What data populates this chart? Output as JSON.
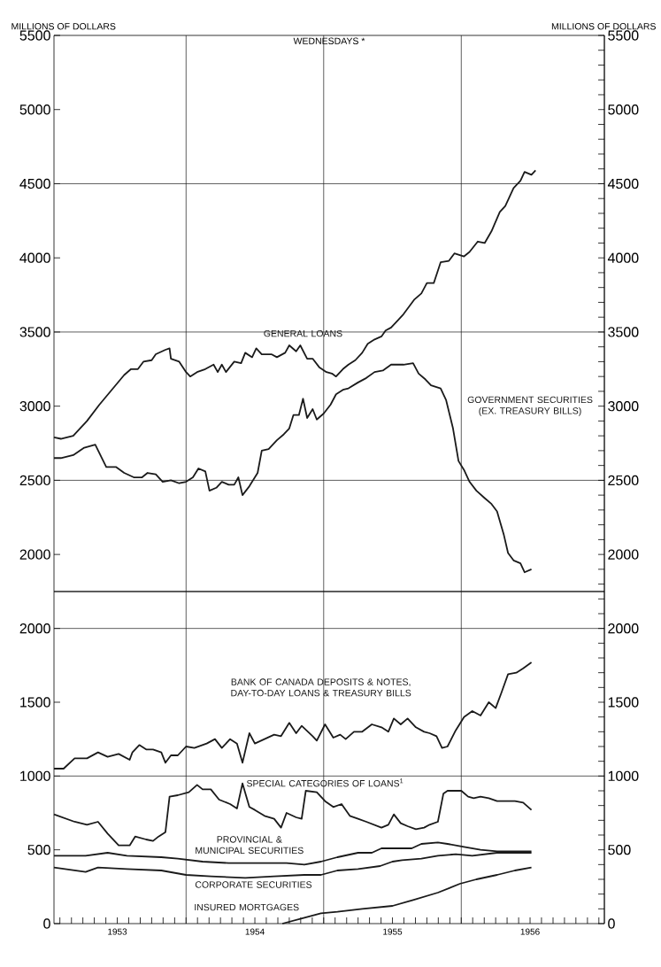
{
  "chart_data": [
    {
      "type": "line",
      "title": "WEDNESDAYS *",
      "ylabel": "MILLIONS OF DOLLARS",
      "y2label": "MILLIONS OF DOLLARS",
      "xlim": [
        1953.04,
        1957.04
      ],
      "ylim": [
        1750,
        5500
      ],
      "yticks": [
        2000,
        2500,
        3000,
        3500,
        4000,
        4500,
        5000,
        5500
      ],
      "y2lim": [
        1750,
        5500
      ],
      "y2ticks": [
        {
          "value": 1800,
          "label": null
        },
        {
          "value": 1900,
          "label": null
        },
        2000,
        {
          "value": 2100,
          "label": null
        },
        {
          "value": 2200,
          "label": null
        },
        {
          "value": 2300,
          "label": null
        },
        {
          "value": 2400,
          "label": null
        },
        2500,
        {
          "value": 2600,
          "label": null
        },
        {
          "value": 2700,
          "label": null
        },
        {
          "value": 2800,
          "label": null
        },
        {
          "value": 2900,
          "label": null
        },
        3000,
        {
          "value": 3100,
          "label": null
        },
        {
          "value": 3200,
          "label": null
        },
        {
          "value": 3300,
          "label": null
        },
        {
          "value": 3400,
          "label": null
        },
        3500,
        {
          "value": 3600,
          "label": null
        },
        {
          "value": 3700,
          "label": null
        },
        {
          "value": 3800,
          "label": null
        },
        {
          "value": 3900,
          "label": null
        },
        4000,
        {
          "value": 4100,
          "label": null
        },
        {
          "value": 4200,
          "label": null
        },
        {
          "value": 4300,
          "label": null
        },
        {
          "value": 4400,
          "label": null
        },
        4500,
        {
          "value": 4600,
          "label": null
        },
        {
          "value": 4700,
          "label": null
        },
        {
          "value": 4800,
          "label": null
        },
        {
          "value": 4900,
          "label": null
        },
        5000,
        {
          "value": 5100,
          "label": null
        },
        {
          "value": 5200,
          "label": null
        },
        {
          "value": 5300,
          "label": null
        },
        {
          "value": 5400,
          "label": null
        },
        5500
      ],
      "tick_labels": "y",
      "marker": "none",
      "ref_lines": [
        {
          "axis": "x",
          "value": 1954
        },
        {
          "axis": "x",
          "value": 1955
        },
        {
          "axis": "x",
          "value": 1956
        },
        {
          "axis": "y",
          "value": 2500
        },
        {
          "axis": "y",
          "value": 3500
        },
        {
          "axis": "y",
          "value": 4500
        }
      ],
      "series": [
        {
          "name": "GENERAL LOANS",
          "color": "#1a1a1a",
          "x": [
            1953.04,
            1953.09,
            1953.18,
            1953.28,
            1953.37,
            1953.46,
            1953.55,
            1953.6,
            1953.65,
            1953.69,
            1953.75,
            1953.78,
            1953.85,
            1953.88,
            1953.89,
            1953.95,
            1954.0,
            1954.03,
            1954.08,
            1954.14,
            1954.2,
            1954.23,
            1954.26,
            1954.29,
            1954.35,
            1954.4,
            1954.43,
            1954.48,
            1954.51,
            1954.55,
            1954.62,
            1954.66,
            1954.72,
            1954.75,
            1954.8,
            1954.83,
            1954.88,
            1954.92,
            1954.97,
            1955.02,
            1955.06,
            1955.09,
            1955.14,
            1955.18,
            1955.23,
            1955.28,
            1955.32,
            1955.37,
            1955.42,
            1955.45,
            1955.49,
            1955.54,
            1955.58,
            1955.66,
            1955.71,
            1955.75,
            1955.8,
            1955.85,
            1955.91,
            1955.95,
            1956.02,
            1956.06,
            1956.12,
            1956.17,
            1956.22,
            1956.28,
            1956.32,
            1956.38,
            1956.43,
            1956.46,
            1956.51,
            1956.54
          ],
          "values": [
            2790,
            2780,
            2800,
            2900,
            3010,
            3110,
            3210,
            3250,
            3250,
            3300,
            3310,
            3350,
            3380,
            3390,
            3320,
            3300,
            3230,
            3200,
            3230,
            3250,
            3280,
            3230,
            3280,
            3230,
            3300,
            3290,
            3360,
            3330,
            3390,
            3350,
            3350,
            3330,
            3360,
            3410,
            3370,
            3410,
            3320,
            3320,
            3260,
            3230,
            3220,
            3200,
            3250,
            3280,
            3310,
            3360,
            3420,
            3450,
            3470,
            3510,
            3530,
            3580,
            3620,
            3720,
            3760,
            3830,
            3830,
            3970,
            3980,
            4030,
            4010,
            4040,
            4110,
            4100,
            4180,
            4310,
            4350,
            4470,
            4520,
            4580,
            4560,
            4590
          ]
        },
        {
          "name": "GOVERNMENT SECURITIES (EX. TREASURY BILLS)",
          "color": "#1a1a1a",
          "x": [
            1953.04,
            1953.09,
            1953.18,
            1953.26,
            1953.34,
            1953.42,
            1953.49,
            1953.55,
            1953.62,
            1953.68,
            1953.72,
            1953.78,
            1953.83,
            1953.89,
            1953.95,
            1954.0,
            1954.05,
            1954.09,
            1954.14,
            1954.17,
            1954.22,
            1954.26,
            1954.31,
            1954.35,
            1954.38,
            1954.41,
            1954.46,
            1954.52,
            1954.55,
            1954.6,
            1954.66,
            1954.71,
            1954.75,
            1954.78,
            1954.82,
            1954.85,
            1954.88,
            1954.92,
            1954.95,
            1955.0,
            1955.05,
            1955.09,
            1955.14,
            1955.18,
            1955.25,
            1955.31,
            1955.37,
            1955.43,
            1955.49,
            1955.54,
            1955.58,
            1955.65,
            1955.69,
            1955.74,
            1955.78,
            1955.85,
            1955.89,
            1955.94,
            1955.98,
            1956.02,
            1956.06,
            1956.11,
            1956.17,
            1956.22,
            1956.26,
            1956.31,
            1956.34,
            1956.38,
            1956.43,
            1956.46,
            1956.51
          ],
          "values": [
            2650,
            2650,
            2670,
            2720,
            2740,
            2590,
            2590,
            2550,
            2520,
            2520,
            2550,
            2540,
            2490,
            2500,
            2480,
            2490,
            2520,
            2580,
            2560,
            2430,
            2450,
            2490,
            2470,
            2470,
            2520,
            2400,
            2460,
            2550,
            2700,
            2710,
            2770,
            2810,
            2850,
            2940,
            2940,
            3050,
            2920,
            2980,
            2910,
            2950,
            3010,
            3080,
            3110,
            3120,
            3160,
            3190,
            3230,
            3240,
            3280,
            3280,
            3280,
            3290,
            3220,
            3180,
            3140,
            3120,
            3040,
            2850,
            2630,
            2570,
            2490,
            2430,
            2380,
            2340,
            2290,
            2130,
            2010,
            1960,
            1940,
            1880,
            1900
          ]
        }
      ]
    },
    {
      "type": "line",
      "xlim": [
        1953.04,
        1957.04
      ],
      "ylim": [
        0,
        2250
      ],
      "yticks": [
        0,
        500,
        1000,
        1500,
        2000
      ],
      "xticks": [
        {
          "value": 1953.083,
          "label": null
        },
        {
          "value": 1953.167,
          "label": null
        },
        {
          "value": 1953.25,
          "label": null
        },
        {
          "value": 1953.333,
          "label": null
        },
        {
          "value": 1953.417,
          "label": null
        },
        {
          "value": 1953.5,
          "label": "1953"
        },
        {
          "value": 1953.583,
          "label": null
        },
        {
          "value": 1953.667,
          "label": null
        },
        {
          "value": 1953.75,
          "label": null
        },
        {
          "value": 1953.833,
          "label": null
        },
        {
          "value": 1953.917,
          "label": null
        },
        {
          "value": 1954,
          "label": null
        },
        {
          "value": 1954.083,
          "label": null
        },
        {
          "value": 1954.167,
          "label": null
        },
        {
          "value": 1954.25,
          "label": null
        },
        {
          "value": 1954.333,
          "label": null
        },
        {
          "value": 1954.417,
          "label": null
        },
        {
          "value": 1954.5,
          "label": "1954"
        },
        {
          "value": 1954.583,
          "label": null
        },
        {
          "value": 1954.667,
          "label": null
        },
        {
          "value": 1954.75,
          "label": null
        },
        {
          "value": 1954.833,
          "label": null
        },
        {
          "value": 1954.917,
          "label": null
        },
        {
          "value": 1955,
          "label": null
        },
        {
          "value": 1955.083,
          "label": null
        },
        {
          "value": 1955.167,
          "label": null
        },
        {
          "value": 1955.25,
          "label": null
        },
        {
          "value": 1955.333,
          "label": null
        },
        {
          "value": 1955.417,
          "label": null
        },
        {
          "value": 1955.5,
          "label": "1955"
        },
        {
          "value": 1955.583,
          "label": null
        },
        {
          "value": 1955.667,
          "label": null
        },
        {
          "value": 1955.75,
          "label": null
        },
        {
          "value": 1955.833,
          "label": null
        },
        {
          "value": 1955.917,
          "label": null
        },
        {
          "value": 1956,
          "label": null
        },
        {
          "value": 1956.083,
          "label": null
        },
        {
          "value": 1956.167,
          "label": null
        },
        {
          "value": 1956.25,
          "label": null
        },
        {
          "value": 1956.333,
          "label": null
        },
        {
          "value": 1956.417,
          "label": null
        },
        {
          "value": 1956.5,
          "label": "1956"
        },
        {
          "value": 1956.583,
          "label": null
        },
        {
          "value": 1956.667,
          "label": null
        },
        {
          "value": 1956.75,
          "label": null
        },
        {
          "value": 1956.833,
          "label": null
        },
        {
          "value": 1956.917,
          "label": null
        },
        {
          "value": 1957,
          "label": null
        }
      ],
      "y2lim": [
        0,
        2250
      ],
      "y2ticks": [
        0,
        {
          "value": 100,
          "label": null
        },
        {
          "value": 200,
          "label": null
        },
        {
          "value": 300,
          "label": null
        },
        {
          "value": 400,
          "label": null
        },
        500,
        {
          "value": 600,
          "label": null
        },
        {
          "value": 700,
          "label": null
        },
        {
          "value": 800,
          "label": null
        },
        {
          "value": 900,
          "label": null
        },
        1000,
        {
          "value": 1100,
          "label": null
        },
        {
          "value": 1200,
          "label": null
        },
        {
          "value": 1300,
          "label": null
        },
        {
          "value": 1400,
          "label": null
        },
        1500,
        {
          "value": 1600,
          "label": null
        },
        {
          "value": 1700,
          "label": null
        },
        {
          "value": 1800,
          "label": null
        },
        {
          "value": 1900,
          "label": null
        },
        2000,
        {
          "value": 2100,
          "label": null
        },
        {
          "value": 2200,
          "label": null
        }
      ],
      "marker": "none",
      "ref_lines": [
        {
          "axis": "x",
          "value": 1954
        },
        {
          "axis": "x",
          "value": 1955
        },
        {
          "axis": "x",
          "value": 1956
        },
        {
          "axis": "y",
          "value": 1000
        },
        {
          "axis": "y",
          "value": 2000
        }
      ],
      "series": [
        {
          "name": "BANK OF CANADA DEPOSITS & NOTES, DAY-TO-DAY LOANS & TREASURY BILLS",
          "color": "#1a1a1a",
          "x": [
            1953.04,
            1953.11,
            1953.19,
            1953.28,
            1953.36,
            1953.43,
            1953.51,
            1953.59,
            1953.61,
            1953.66,
            1953.71,
            1953.76,
            1953.82,
            1953.85,
            1953.89,
            1953.94,
            1954.0,
            1954.06,
            1954.15,
            1954.21,
            1954.26,
            1954.32,
            1954.37,
            1954.41,
            1954.46,
            1954.5,
            1954.57,
            1954.64,
            1954.69,
            1954.75,
            1954.8,
            1954.84,
            1954.92,
            1954.95,
            1955.01,
            1955.07,
            1955.12,
            1955.16,
            1955.22,
            1955.28,
            1955.35,
            1955.42,
            1955.47,
            1955.51,
            1955.56,
            1955.61,
            1955.67,
            1955.73,
            1955.77,
            1955.82,
            1955.86,
            1955.9,
            1955.96,
            1956.02,
            1956.08,
            1956.14,
            1956.2,
            1956.25,
            1956.29,
            1956.34,
            1956.4,
            1956.45,
            1956.51
          ],
          "values": [
            1050,
            1050,
            1120,
            1120,
            1160,
            1130,
            1150,
            1110,
            1160,
            1210,
            1180,
            1180,
            1160,
            1090,
            1140,
            1140,
            1200,
            1190,
            1220,
            1250,
            1190,
            1250,
            1220,
            1090,
            1290,
            1220,
            1250,
            1280,
            1270,
            1360,
            1290,
            1340,
            1270,
            1240,
            1350,
            1260,
            1280,
            1250,
            1300,
            1300,
            1350,
            1330,
            1300,
            1390,
            1350,
            1390,
            1330,
            1300,
            1290,
            1270,
            1190,
            1200,
            1310,
            1400,
            1440,
            1410,
            1500,
            1460,
            1560,
            1690,
            1700,
            1730,
            1770
          ]
        },
        {
          "name": "SPECIAL CATEGORIES OF LOANS$^{1}$",
          "color": "#1a1a1a",
          "x": [
            1953.04,
            1953.19,
            1953.28,
            1953.36,
            1953.43,
            1953.51,
            1953.59,
            1953.63,
            1953.71,
            1953.76,
            1953.8,
            1953.85,
            1953.88,
            1953.94,
            1954.02,
            1954.08,
            1954.12,
            1954.18,
            1954.24,
            1954.32,
            1954.37,
            1954.41,
            1954.46,
            1954.5,
            1954.57,
            1954.64,
            1954.69,
            1954.73,
            1954.8,
            1954.84,
            1954.87,
            1954.95,
            1955.01,
            1955.07,
            1955.13,
            1955.19,
            1955.25,
            1955.31,
            1955.42,
            1955.47,
            1955.51,
            1955.56,
            1955.61,
            1955.67,
            1955.73,
            1955.77,
            1955.83,
            1955.87,
            1955.9,
            1955.96,
            1956.0,
            1956.05,
            1956.09,
            1956.14,
            1956.2,
            1956.26,
            1956.32,
            1956.39,
            1956.45,
            1956.51
          ],
          "values": [
            740,
            690,
            670,
            690,
            610,
            530,
            530,
            590,
            570,
            560,
            590,
            620,
            860,
            870,
            890,
            940,
            910,
            910,
            840,
            810,
            780,
            950,
            790,
            770,
            730,
            710,
            650,
            750,
            720,
            710,
            900,
            890,
            830,
            790,
            810,
            730,
            710,
            690,
            650,
            670,
            740,
            680,
            660,
            640,
            650,
            670,
            690,
            880,
            900,
            900,
            900,
            860,
            850,
            860,
            850,
            830,
            830,
            830,
            820,
            770
          ]
        },
        {
          "name": "PROVINCIAL & MUNICIPAL SECURITIES",
          "color": "#1a1a1a",
          "x": [
            1953.04,
            1953.27,
            1953.43,
            1953.57,
            1953.82,
            1953.94,
            1954.12,
            1954.31,
            1954.52,
            1954.73,
            1954.86,
            1954.98,
            1955.1,
            1955.25,
            1955.35,
            1955.42,
            1955.53,
            1955.64,
            1955.71,
            1955.83,
            1955.9,
            1956.02,
            1956.14,
            1956.26,
            1956.39,
            1956.51
          ],
          "values": [
            460,
            460,
            480,
            460,
            450,
            440,
            420,
            410,
            410,
            410,
            400,
            420,
            450,
            480,
            480,
            510,
            510,
            510,
            540,
            550,
            540,
            520,
            500,
            490,
            490,
            490
          ]
        },
        {
          "name": "CORPORATE SECURITIES",
          "color": "#1a1a1a",
          "x": [
            1953.04,
            1953.27,
            1953.36,
            1953.57,
            1953.82,
            1954.0,
            1954.18,
            1954.43,
            1954.64,
            1954.86,
            1954.98,
            1955.1,
            1955.25,
            1955.41,
            1955.5,
            1955.57,
            1955.71,
            1955.83,
            1955.96,
            1956.08,
            1956.17,
            1956.26,
            1956.39,
            1956.51
          ],
          "values": [
            380,
            350,
            380,
            370,
            360,
            330,
            320,
            310,
            320,
            330,
            330,
            360,
            370,
            390,
            420,
            430,
            440,
            460,
            470,
            460,
            470,
            480,
            480,
            480
          ]
        },
        {
          "name": "INSURED MORTGAGES",
          "color": "#1a1a1a",
          "x": [
            1954.7,
            1954.86,
            1954.98,
            1955.1,
            1955.28,
            1955.5,
            1955.65,
            1955.83,
            1955.99,
            1956.11,
            1956.26,
            1956.39,
            1956.51
          ],
          "values": [
            0,
            40,
            70,
            80,
            100,
            120,
            160,
            210,
            270,
            300,
            330,
            360,
            380
          ]
        }
      ]
    }
  ]
}
